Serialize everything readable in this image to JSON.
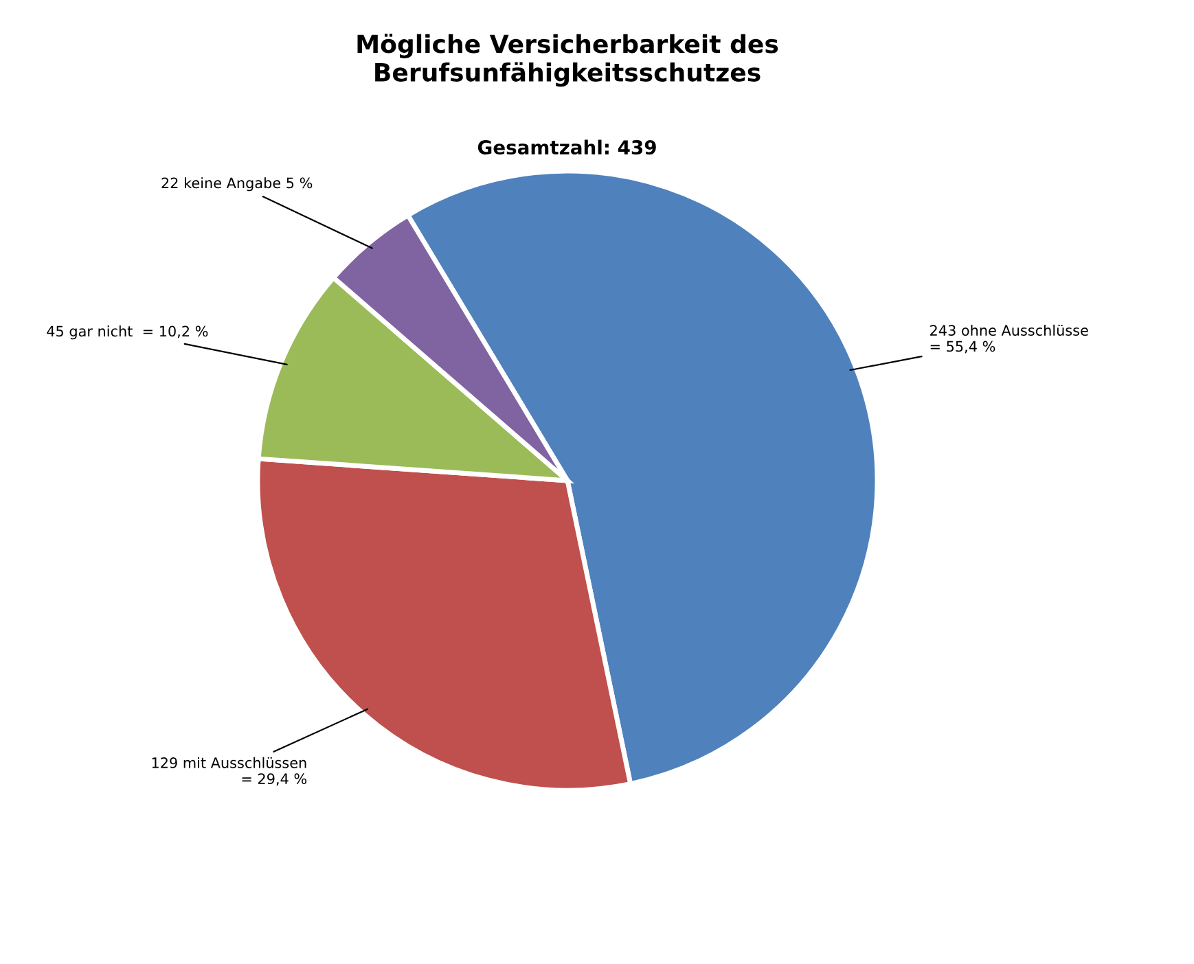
{
  "chart_data": {
    "type": "pie",
    "title": "Mögliche Versicherbarkeit des\nBerufsunfähigkeitsschutzes",
    "subtitle": "Gesamtzahl: 439",
    "categories": [
      "243 ohne Ausschlüsse\n= 55,4 %",
      "129 mit Ausschlüssen\n= 29,4 %",
      "45 gar nicht  = 10,2 %",
      "22 keine Angabe 5 %"
    ],
    "values": [
      243,
      129,
      45,
      22
    ],
    "colors": [
      "#4f81bd",
      "#c0504d",
      "#9bbb59",
      "#8064a2"
    ],
    "legend": false
  }
}
